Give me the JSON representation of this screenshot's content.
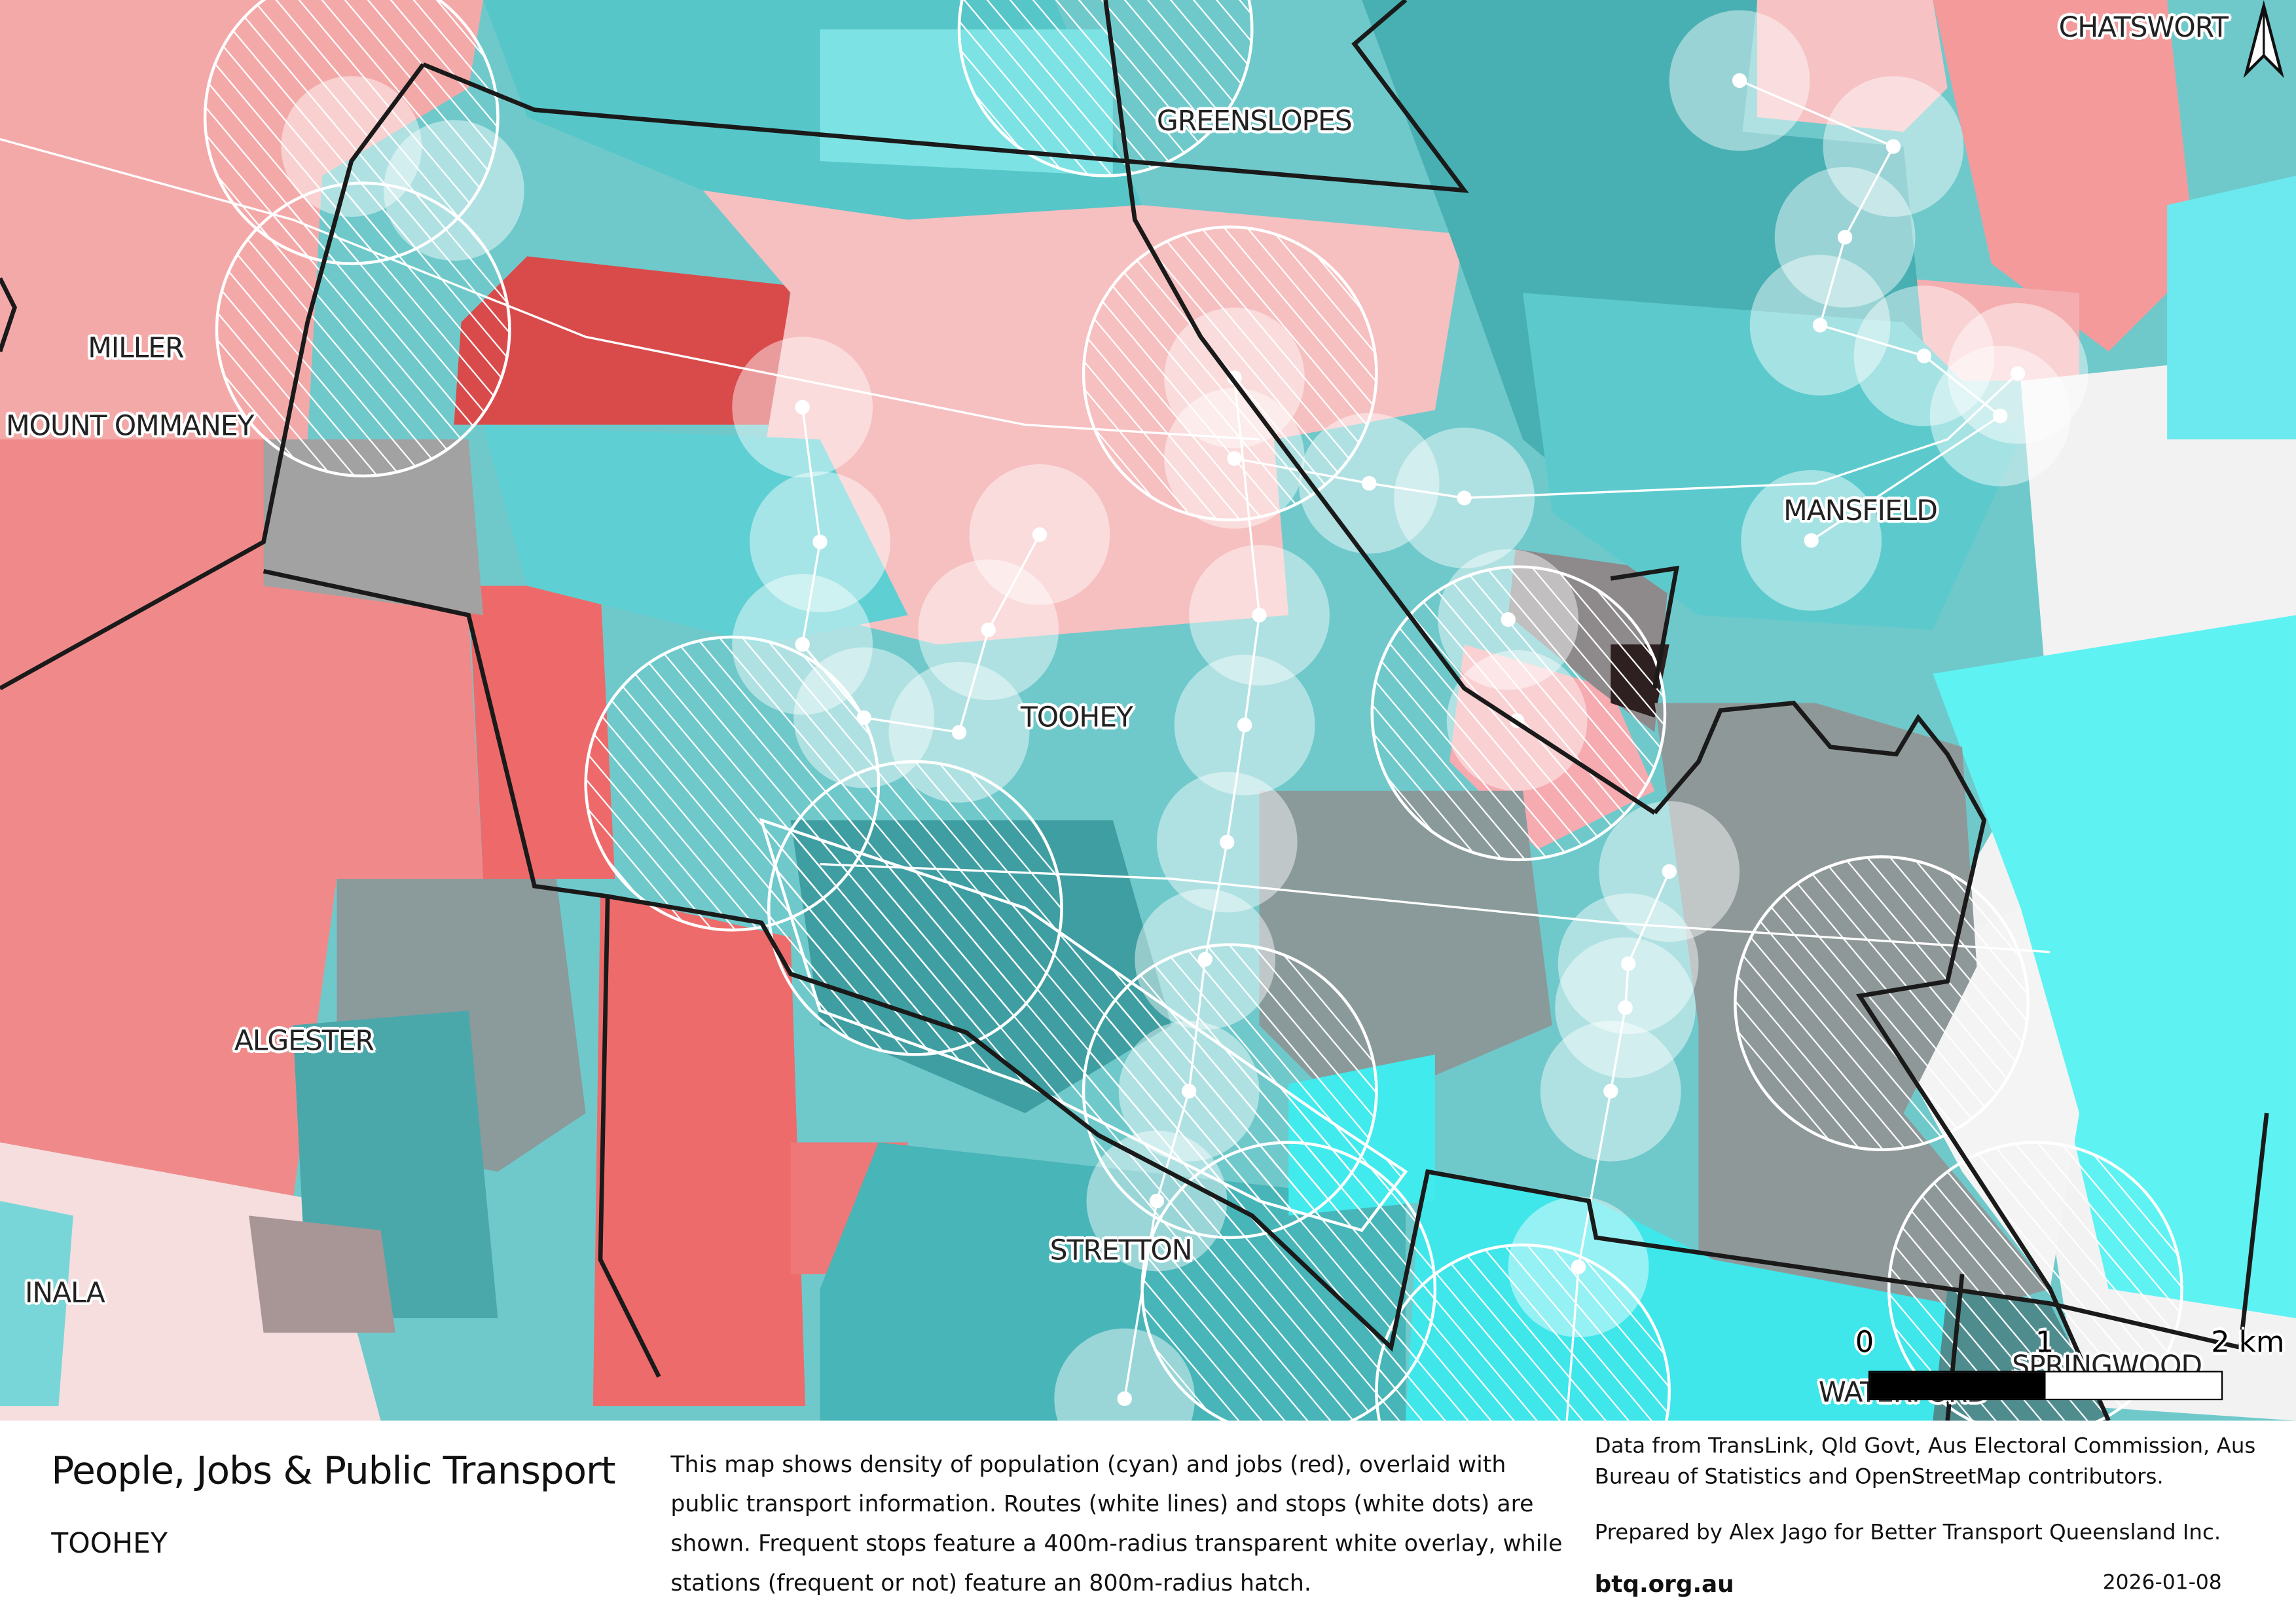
{
  "map": {
    "suburb_labels": [
      "CHATSWORT",
      "GREENSLOPES",
      "MILLER",
      "MOUNT OMMANEY",
      "MANSFIELD",
      "TOOHEY",
      "ALGESTER",
      "STRETTON",
      "INALA",
      "SPRINGWOOD",
      "WATERFORD"
    ],
    "north_arrow_icon": "north-arrow-icon",
    "scale_bar": {
      "ticks": [
        "0",
        "1",
        "2 km"
      ]
    },
    "colors": {
      "population": "#4fd8dc",
      "jobs": "#e8474b",
      "boundary": "#1a1a1a"
    }
  },
  "footer": {
    "title": "People, Jobs & Public Transport",
    "subtitle": "TOOHEY",
    "description": "This map shows density of population (cyan) and jobs (red), overlaid with public transport information. Routes (white lines) and stops (white dots) are shown. Frequent stops feature a 400m-radius transparent white overlay, while stations (frequent or not) feature an 800m-radius hatch.",
    "sources": "Data from TransLink,  Qld Govt,  Aus Electoral Commission, Aus Bureau of Statistics and OpenStreetMap contributors.",
    "prepared_by": "Prepared by Alex Jago for Better Transport Queensland Inc.",
    "website": "btq.org.au",
    "date": "2026-01-08"
  }
}
